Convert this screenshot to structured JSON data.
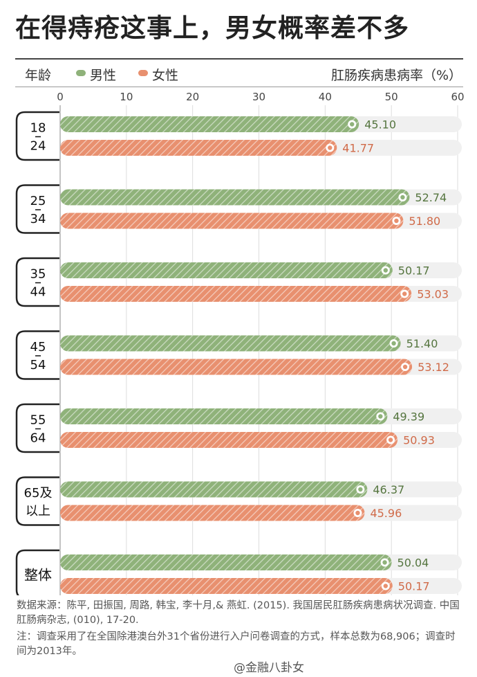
{
  "title": "在得痔疮这事上，男女概率差不多",
  "header": {
    "age_label": "年龄",
    "legend_male": "男性",
    "legend_female": "女性",
    "ylabel": "肛肠疾病患病率（%）"
  },
  "colors": {
    "male": "#8fb27a",
    "female": "#e8906f",
    "track": "#f0f0f0"
  },
  "chart_data": {
    "type": "bar",
    "orientation": "horizontal",
    "title": "在得痔疮这事上，男女概率差不多",
    "xlabel": "肛肠疾病患病率（%）",
    "ylabel": "年龄",
    "xlim": [
      0,
      60
    ],
    "xticks": [
      0,
      10,
      20,
      30,
      40,
      50,
      60
    ],
    "categories": [
      "18-24",
      "25-34",
      "35-44",
      "45-54",
      "55-64",
      "65及以上",
      "整体"
    ],
    "group_labels": [
      [
        "18",
        "24"
      ],
      [
        "25",
        "34"
      ],
      [
        "35",
        "44"
      ],
      [
        "45",
        "54"
      ],
      [
        "55",
        "64"
      ],
      [
        "65及",
        "以上"
      ],
      [
        "整体"
      ]
    ],
    "series": [
      {
        "name": "男性",
        "values": [
          45.1,
          52.74,
          50.17,
          51.4,
          49.39,
          46.37,
          50.04
        ]
      },
      {
        "name": "女性",
        "values": [
          41.77,
          51.8,
          53.03,
          53.12,
          50.93,
          45.96,
          50.17
        ]
      }
    ],
    "value_labels": [
      [
        "45.10",
        "52.74",
        "50.17",
        "51.40",
        "49.39",
        "46.37",
        "50.04"
      ],
      [
        "41.77",
        "51.80",
        "53.03",
        "53.12",
        "50.93",
        "45.96",
        "50.17"
      ]
    ],
    "grid": true,
    "legend": "top-left"
  },
  "source": "数据来源：陈平, 田振国, 周路, 韩宝, 李十月,& 燕虹. (2015). 我国居民肛肠疾病患病状况调查. 中国肛肠病杂志, (010), 17-20.",
  "note": "注：调查采用了在全国除港澳台外31个省份进行入户问卷调查的方式，样本总数为68,906；调查时间为2013年。",
  "watermark": "@金融八卦女"
}
